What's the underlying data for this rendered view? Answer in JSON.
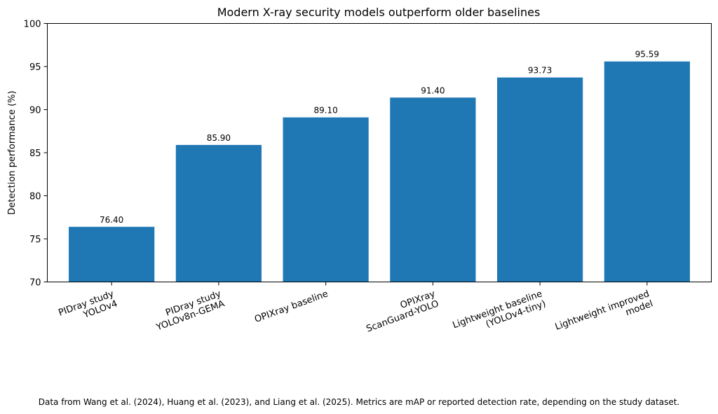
{
  "chart_data": {
    "type": "bar",
    "title": "Modern X-ray security models outperform older baselines",
    "xlabel": "",
    "ylabel": "Detection performance (%)",
    "ylim": [
      70,
      100
    ],
    "yticks": [
      "70",
      "75",
      "80",
      "85",
      "90",
      "95",
      "100"
    ],
    "categories": [
      [
        "PIDray study",
        "YOLOv4"
      ],
      [
        "PIDray study",
        "YOLOv8n-GEMA"
      ],
      [
        "OPIXray baseline"
      ],
      [
        "OPIXray",
        "ScanGuard-YOLO"
      ],
      [
        "Lightweight baseline",
        "(YOLOv4-tiny)"
      ],
      [
        "Lightweight improved",
        "model"
      ]
    ],
    "values": [
      76.4,
      85.9,
      89.1,
      91.4,
      93.73,
      95.59
    ],
    "value_labels": [
      "76.40",
      "85.90",
      "89.10",
      "91.40",
      "93.73",
      "95.59"
    ],
    "bar_color": "#1f77b4",
    "grid": false,
    "legend": "none",
    "footnote": "Data from Wang et al. (2024), Huang et al. (2023), and Liang et al. (2025). Metrics are mAP or reported detection rate, depending on the study dataset."
  }
}
